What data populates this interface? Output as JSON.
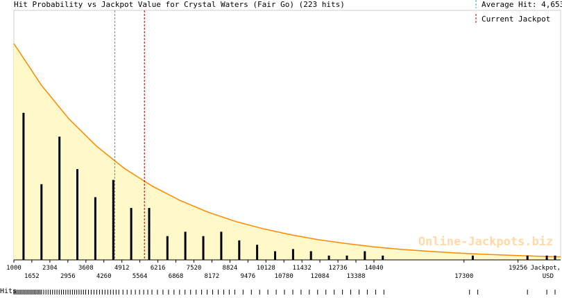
{
  "chart_data": {
    "type": "bar",
    "title": "Hit Probability vs Jackpot Value for Crystal Waters (Fair Go) (223 hits)",
    "xlabel": "Jackpot, USD",
    "xlabel_lines": [
      "Jackpot,",
      "USD"
    ],
    "hits_label": "Hits",
    "xlim": [
      1000,
      20800
    ],
    "ylim": [
      0,
      1.0
    ],
    "tick_labels_top": [
      1000,
      2304,
      3608,
      4912,
      6216,
      7520,
      8824,
      10128,
      11432,
      12736,
      14040,
      19256
    ],
    "tick_labels_bottom": [
      1652,
      2956,
      4260,
      5564,
      6868,
      8172,
      9476,
      10780,
      12084,
      13388,
      17300
    ],
    "hit_bars": {
      "x": [
        1350,
        2000,
        2650,
        3300,
        3950,
        4600,
        5250,
        5900,
        6560,
        7210,
        7860,
        8510,
        9160,
        9810,
        10460,
        11110,
        11760,
        12410,
        13060,
        13710,
        14360,
        17620,
        19600,
        20300,
        20600
      ],
      "values": [
        0.68,
        0.35,
        0.57,
        0.42,
        0.29,
        0.37,
        0.24,
        0.24,
        0.11,
        0.13,
        0.11,
        0.13,
        0.09,
        0.07,
        0.04,
        0.05,
        0.04,
        0.02,
        0.02,
        0.04,
        0.02,
        0.02,
        0.02,
        0.02,
        0.02
      ]
    },
    "probability_curve": {
      "x": [
        1000,
        2000,
        3000,
        4000,
        5000,
        6000,
        7000,
        8000,
        9000,
        10000,
        11000,
        12000,
        13000,
        14000,
        15000,
        16000,
        17000,
        18000,
        19000,
        20000,
        20800
      ],
      "values": [
        1.0,
        0.807,
        0.651,
        0.525,
        0.423,
        0.342,
        0.276,
        0.222,
        0.179,
        0.145,
        0.117,
        0.094,
        0.076,
        0.061,
        0.049,
        0.04,
        0.032,
        0.026,
        0.021,
        0.017,
        0.014
      ]
    },
    "average_hit": {
      "label": "Average Hit: 4,653",
      "value": 4653,
      "color": "#3399cc"
    },
    "current_jackpot": {
      "label": "Current Jackpot",
      "value": 5730,
      "color": "#990000"
    },
    "rug_x": [
      1000,
      1050,
      1100,
      1150,
      1200,
      1250,
      1300,
      1350,
      1400,
      1450,
      1500,
      1550,
      1600,
      1650,
      1700,
      1750,
      1800,
      1850,
      1900,
      1950,
      2000,
      2080,
      2160,
      2240,
      2320,
      2400,
      2480,
      2560,
      2640,
      2720,
      2800,
      2880,
      2960,
      3040,
      3120,
      3200,
      3280,
      3360,
      3440,
      3520,
      3600,
      3700,
      3800,
      3900,
      4000,
      4100,
      4200,
      4300,
      4400,
      4500,
      4600,
      4700,
      4800,
      4950,
      5100,
      5250,
      5400,
      5550,
      5700,
      5850,
      6000,
      6200,
      6400,
      6600,
      6800,
      7000,
      7200,
      7400,
      7600,
      7800,
      8000,
      8200,
      8400,
      8600,
      8800,
      9000,
      9300,
      9600,
      9900,
      10200,
      10500,
      10800,
      11100,
      11400,
      11700,
      12000,
      12300,
      12600,
      12900,
      13200,
      13500,
      13800,
      14100,
      14400,
      17500,
      17800,
      19600,
      20300,
      20600
    ],
    "area_fill_color": "#fff8c8",
    "curve_color": "#ff8800",
    "bar_color": "#000000",
    "watermark": "Online-Jackpots.biz",
    "watermark_color": "#ffd9a8"
  }
}
